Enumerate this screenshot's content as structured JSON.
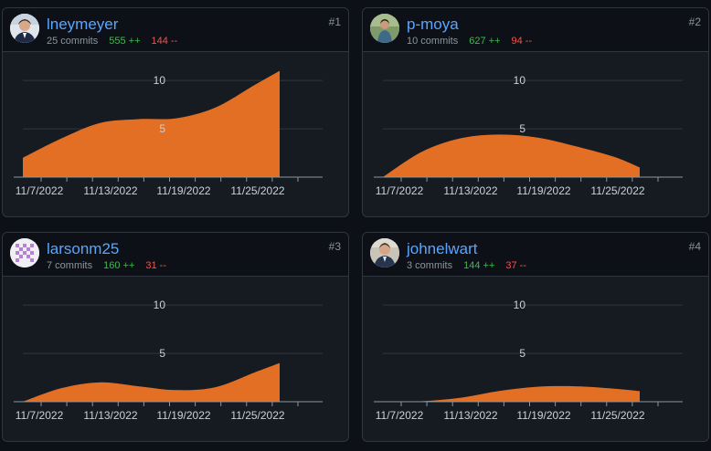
{
  "colors": {
    "area": "#e36f24",
    "username": "#58a6ff",
    "additions": "#3fb950",
    "deletions": "#f85149",
    "grid": "#30363d"
  },
  "contributors": [
    {
      "rank": "#1",
      "username": "lneymeyer",
      "commits": "25 commits",
      "additions": "555 ++",
      "deletions": "144 --",
      "avatar_icon": "avatar-photo-icon"
    },
    {
      "rank": "#2",
      "username": "p-moya",
      "commits": "10 commits",
      "additions": "627 ++",
      "deletions": "94 --",
      "avatar_icon": "avatar-photo-icon"
    },
    {
      "rank": "#3",
      "username": "larsonm25",
      "commits": "7 commits",
      "additions": "160 ++",
      "deletions": "31 --",
      "avatar_icon": "identicon-icon"
    },
    {
      "rank": "#4",
      "username": "johnelwart",
      "commits": "3 commits",
      "additions": "144 ++",
      "deletions": "37 --",
      "avatar_icon": "avatar-photo-icon"
    }
  ],
  "chart_data": [
    {
      "type": "area",
      "title": "lneymeyer",
      "categories": [
        "11/7/2022",
        "11/13/2022",
        "11/19/2022",
        "11/25/2022"
      ],
      "x": [
        0,
        3,
        6,
        9,
        12,
        15,
        18,
        20
      ],
      "values": [
        2,
        4,
        5.6,
        6,
        6.1,
        7.2,
        9.5,
        11
      ],
      "yticks": [
        5,
        10
      ],
      "ylim": [
        0,
        12
      ]
    },
    {
      "type": "area",
      "title": "p-moya",
      "categories": [
        "11/7/2022",
        "11/13/2022",
        "11/19/2022",
        "11/25/2022"
      ],
      "x": [
        0,
        3,
        6,
        9,
        12,
        15,
        18,
        20
      ],
      "values": [
        0,
        2.6,
        4,
        4.4,
        4.1,
        3.2,
        2.1,
        1
      ],
      "yticks": [
        5,
        10
      ],
      "ylim": [
        0,
        12
      ]
    },
    {
      "type": "area",
      "title": "larsonm25",
      "categories": [
        "11/7/2022",
        "11/13/2022",
        "11/19/2022",
        "11/25/2022"
      ],
      "x": [
        0,
        3,
        6,
        9,
        12,
        15,
        18,
        20
      ],
      "values": [
        0,
        1.4,
        2,
        1.6,
        1.2,
        1.5,
        3,
        4
      ],
      "yticks": [
        5,
        10
      ],
      "ylim": [
        0,
        12
      ]
    },
    {
      "type": "area",
      "title": "johnelwart",
      "categories": [
        "11/7/2022",
        "11/13/2022",
        "11/19/2022",
        "11/25/2022"
      ],
      "x": [
        0,
        3,
        6,
        9,
        12,
        15,
        18,
        20
      ],
      "values": [
        0,
        0.05,
        0.4,
        1.1,
        1.55,
        1.6,
        1.35,
        1.1
      ],
      "yticks": [
        5,
        10
      ],
      "ylim": [
        0,
        12
      ]
    }
  ]
}
